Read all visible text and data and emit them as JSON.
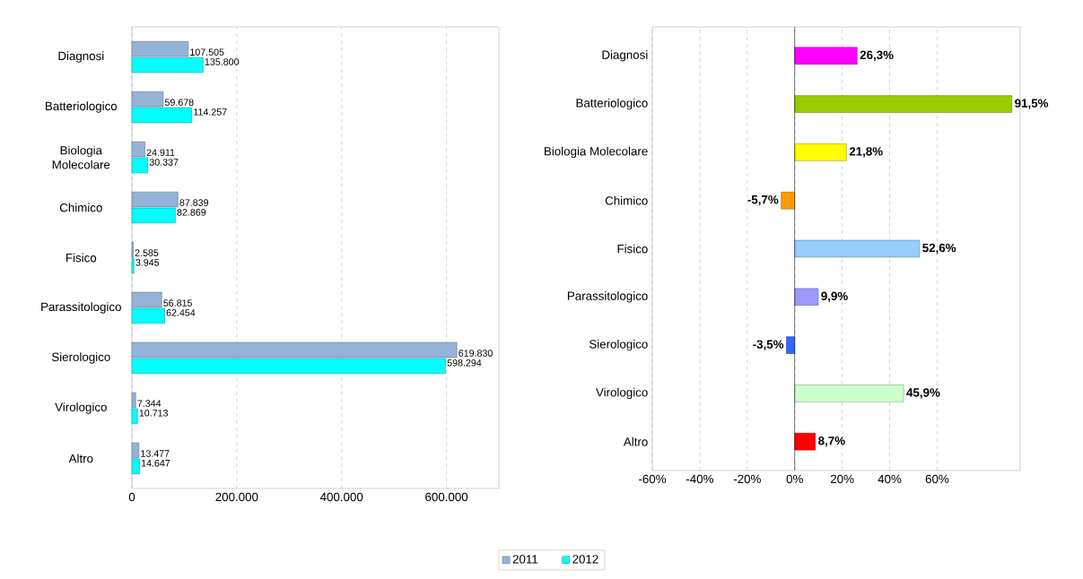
{
  "chart_data": [
    {
      "type": "bar",
      "orientation": "horizontal",
      "categories": [
        "Diagnosi",
        "Batteriologico",
        "Biologia Molecolare",
        "Chimico",
        "Fisico",
        "Parassitologico",
        "Sierologico",
        "Virologico",
        "Altro"
      ],
      "series": [
        {
          "name": "2011",
          "color": "#95b3d7",
          "values": [
            107505,
            59678,
            24911,
            87839,
            2585,
            56815,
            619830,
            7344,
            13477
          ],
          "value_labels": [
            "107.505",
            "59.678",
            "24.911",
            "87.839",
            "2.585",
            "56.815",
            "619.830",
            "7.344",
            "13.477"
          ]
        },
        {
          "name": "2012",
          "color": "#00ffff",
          "values": [
            135800,
            114257,
            30337,
            82869,
            3945,
            62454,
            598294,
            10713,
            14647
          ],
          "value_labels": [
            "135.800",
            "114.257",
            "30.337",
            "82.869",
            "3.945",
            "62.454",
            "598.294",
            "10.713",
            "14.647"
          ]
        }
      ],
      "xlim": [
        0,
        700000
      ],
      "xticks": [
        0,
        {
          "value": 200000,
          "label": "200.000"
        },
        {
          "value": 400000,
          "label": "400.000"
        },
        {
          "value": 600000,
          "label": "600.000"
        }
      ],
      "grid": "x",
      "legend": "bottom"
    },
    {
      "type": "bar",
      "orientation": "horizontal",
      "categories": [
        "Diagnosi",
        "Batteriologico",
        "Biologia Molecolare",
        "Chimico",
        "Fisico",
        "Parassitologico",
        "Sierologico",
        "Virologico",
        "Altro"
      ],
      "values": [
        26.3,
        91.5,
        21.8,
        -5.7,
        52.6,
        9.9,
        -3.5,
        45.9,
        8.7
      ],
      "value_labels": [
        "26,3%",
        "91,5%",
        "21,8%",
        "-5,7%",
        "52,6%",
        "9,9%",
        "-3,5%",
        "45,9%",
        "8,7%"
      ],
      "colors": [
        "#ff00ff",
        "#99cc00",
        "#ffff00",
        "#ff9900",
        "#99ccff",
        "#9999ff",
        "#3366ff",
        "#ccffcc",
        "#ff0000"
      ],
      "xlim": [
        -60,
        95
      ],
      "xticks": [
        {
          "value": -60,
          "label": "-60%"
        },
        {
          "value": -40,
          "label": "-40%"
        },
        {
          "value": -20,
          "label": "-20%"
        },
        {
          "value": 0,
          "label": "0%"
        },
        {
          "value": 20,
          "label": "20%"
        },
        {
          "value": 40,
          "label": "40%"
        },
        {
          "value": 60,
          "label": "60%"
        }
      ],
      "grid": "x"
    }
  ]
}
